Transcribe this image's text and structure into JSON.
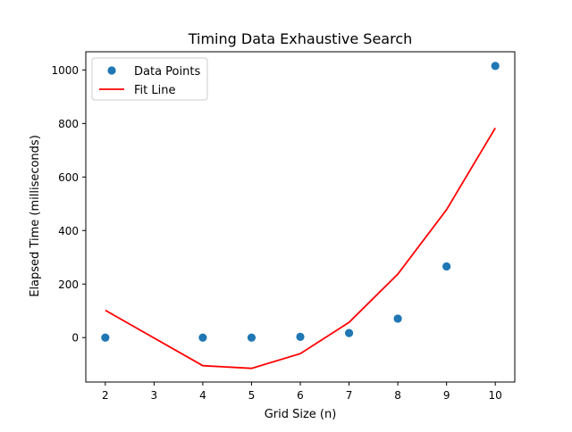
{
  "chart_data": {
    "type": "scatter",
    "title": "Timing Data Exhaustive Search",
    "xlabel": "Grid Size (n)",
    "ylabel": "Elapsed Time (milliseconds)",
    "xlim": [
      1.6,
      10.4
    ],
    "ylim": [
      -166,
      1068
    ],
    "xticks": [
      2,
      3,
      4,
      5,
      6,
      7,
      8,
      9,
      10
    ],
    "yticks": [
      0,
      200,
      400,
      600,
      800,
      1000
    ],
    "grid": false,
    "legend_position": "top-left",
    "series": [
      {
        "name": "Data Points",
        "kind": "scatter",
        "color": "#1f77b4",
        "points": [
          {
            "x": 2,
            "y": 0
          },
          {
            "x": 4,
            "y": 0
          },
          {
            "x": 5,
            "y": 0
          },
          {
            "x": 6,
            "y": 3
          },
          {
            "x": 7,
            "y": 17
          },
          {
            "x": 8,
            "y": 71
          },
          {
            "x": 9,
            "y": 266
          },
          {
            "x": 10,
            "y": 1015
          }
        ]
      },
      {
        "name": "Fit Line",
        "kind": "line",
        "color": "#ff0000",
        "points": [
          {
            "x": 2,
            "y": 102
          },
          {
            "x": 4,
            "y": -105
          },
          {
            "x": 5,
            "y": -115
          },
          {
            "x": 6,
            "y": -60
          },
          {
            "x": 7,
            "y": 57
          },
          {
            "x": 8,
            "y": 237
          },
          {
            "x": 9,
            "y": 478
          },
          {
            "x": 10,
            "y": 783
          }
        ]
      }
    ]
  }
}
